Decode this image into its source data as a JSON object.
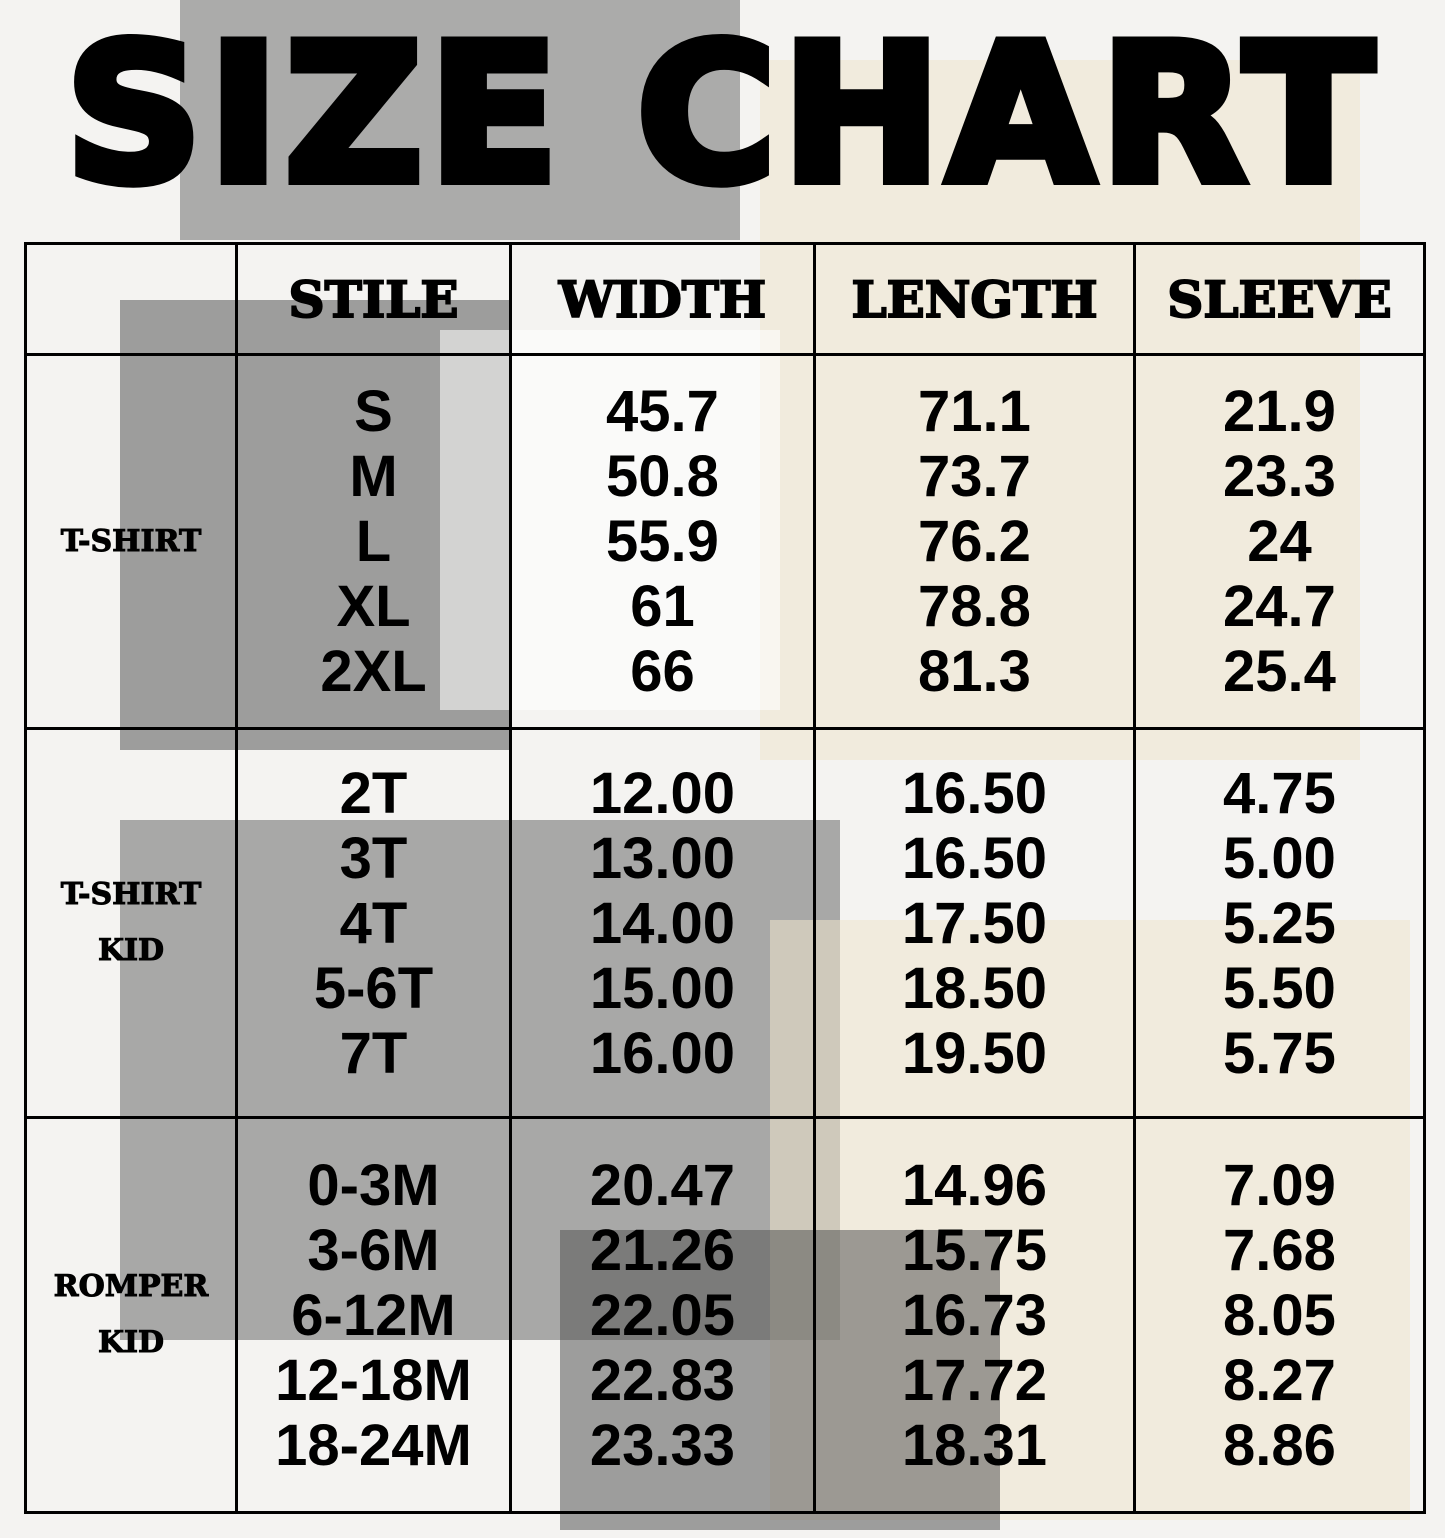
{
  "title": "SIZE CHART",
  "headers": [
    "",
    "STILE",
    "WIDTH",
    "LENGTH",
    "SLEEVE"
  ],
  "groups": [
    {
      "name_lines": [
        "T-SHIRT"
      ],
      "stile": [
        "S",
        "M",
        "L",
        "XL",
        "2XL"
      ],
      "width": [
        "45.7",
        "50.8",
        "55.9",
        "61",
        "66"
      ],
      "length": [
        "71.1",
        "73.7",
        "76.2",
        "78.8",
        "81.3"
      ],
      "sleeve": [
        "21.9",
        "23.3",
        "24",
        "24.7",
        "25.4"
      ]
    },
    {
      "name_lines": [
        "T-SHIRT",
        "KID"
      ],
      "stile": [
        "2T",
        "3T",
        "4T",
        "5-6T",
        "7T"
      ],
      "width": [
        "12.00",
        "13.00",
        "14.00",
        "15.00",
        "16.00"
      ],
      "length": [
        "16.50",
        "16.50",
        "17.50",
        "18.50",
        "19.50"
      ],
      "sleeve": [
        "4.75",
        "5.00",
        "5.25",
        "5.50",
        "5.75"
      ]
    },
    {
      "name_lines": [
        "ROMPER",
        "KID"
      ],
      "stile": [
        "0-3M",
        "3-6M",
        "6-12M",
        "12-18M",
        "18-24M"
      ],
      "width": [
        "20.47",
        "21.26",
        "22.05",
        "22.83",
        "23.33"
      ],
      "length": [
        "14.96",
        "15.75",
        "16.73",
        "17.72",
        "18.31"
      ],
      "sleeve": [
        "7.09",
        "7.68",
        "8.05",
        "8.27",
        "8.86"
      ]
    }
  ],
  "chart_data": {
    "type": "table",
    "title": "SIZE CHART",
    "columns": [
      "",
      "STILE",
      "WIDTH",
      "LENGTH",
      "SLEEVE"
    ]
  }
}
